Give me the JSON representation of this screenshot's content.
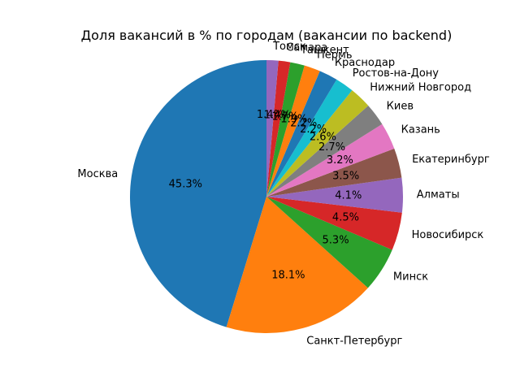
{
  "chart_data": {
    "type": "pie",
    "title": "Доля вакансий в % по городам (вакансии по backend)",
    "start_angle_deg": 90,
    "direction": "counterclockwise",
    "slices": [
      {
        "label": "Москва",
        "value": 45.3,
        "pct_label": "45.3%",
        "color": "#1f77b4"
      },
      {
        "label": "Санкт-Петербург",
        "value": 18.1,
        "pct_label": "18.1%",
        "color": "#ff7f0e"
      },
      {
        "label": "Минск",
        "value": 5.3,
        "pct_label": "5.3%",
        "color": "#2ca02c"
      },
      {
        "label": "Новосибирск",
        "value": 4.5,
        "pct_label": "4.5%",
        "color": "#d62728"
      },
      {
        "label": "Алматы",
        "value": 4.1,
        "pct_label": "4.1%",
        "color": "#9467bd"
      },
      {
        "label": "Екатеринбург",
        "value": 3.5,
        "pct_label": "3.5%",
        "color": "#8c564b"
      },
      {
        "label": "Казань",
        "value": 3.2,
        "pct_label": "3.2%",
        "color": "#e377c2"
      },
      {
        "label": "Киев",
        "value": 2.7,
        "pct_label": "2.7%",
        "color": "#7f7f7f"
      },
      {
        "label": "Нижний Новгород",
        "value": 2.6,
        "pct_label": "2.6%",
        "color": "#bcbd22"
      },
      {
        "label": "Ростов-на-Дону",
        "value": 2.2,
        "pct_label": "2.2%",
        "color": "#17becf"
      },
      {
        "label": "Краснодар",
        "value": 2.2,
        "pct_label": "2.2%",
        "color": "#1f77b4"
      },
      {
        "label": "Пермь",
        "value": 1.9,
        "pct_label": "1.9%",
        "color": "#ff7f0e"
      },
      {
        "label": "Ташкент",
        "value": 1.7,
        "pct_label": "1.7%",
        "color": "#2ca02c"
      },
      {
        "label": "Самара",
        "value": 1.4,
        "pct_label": "1.4%",
        "color": "#d62728"
      },
      {
        "label": "Томск",
        "value": 1.4,
        "pct_label": "1.4%",
        "color": "#9467bd"
      }
    ]
  }
}
